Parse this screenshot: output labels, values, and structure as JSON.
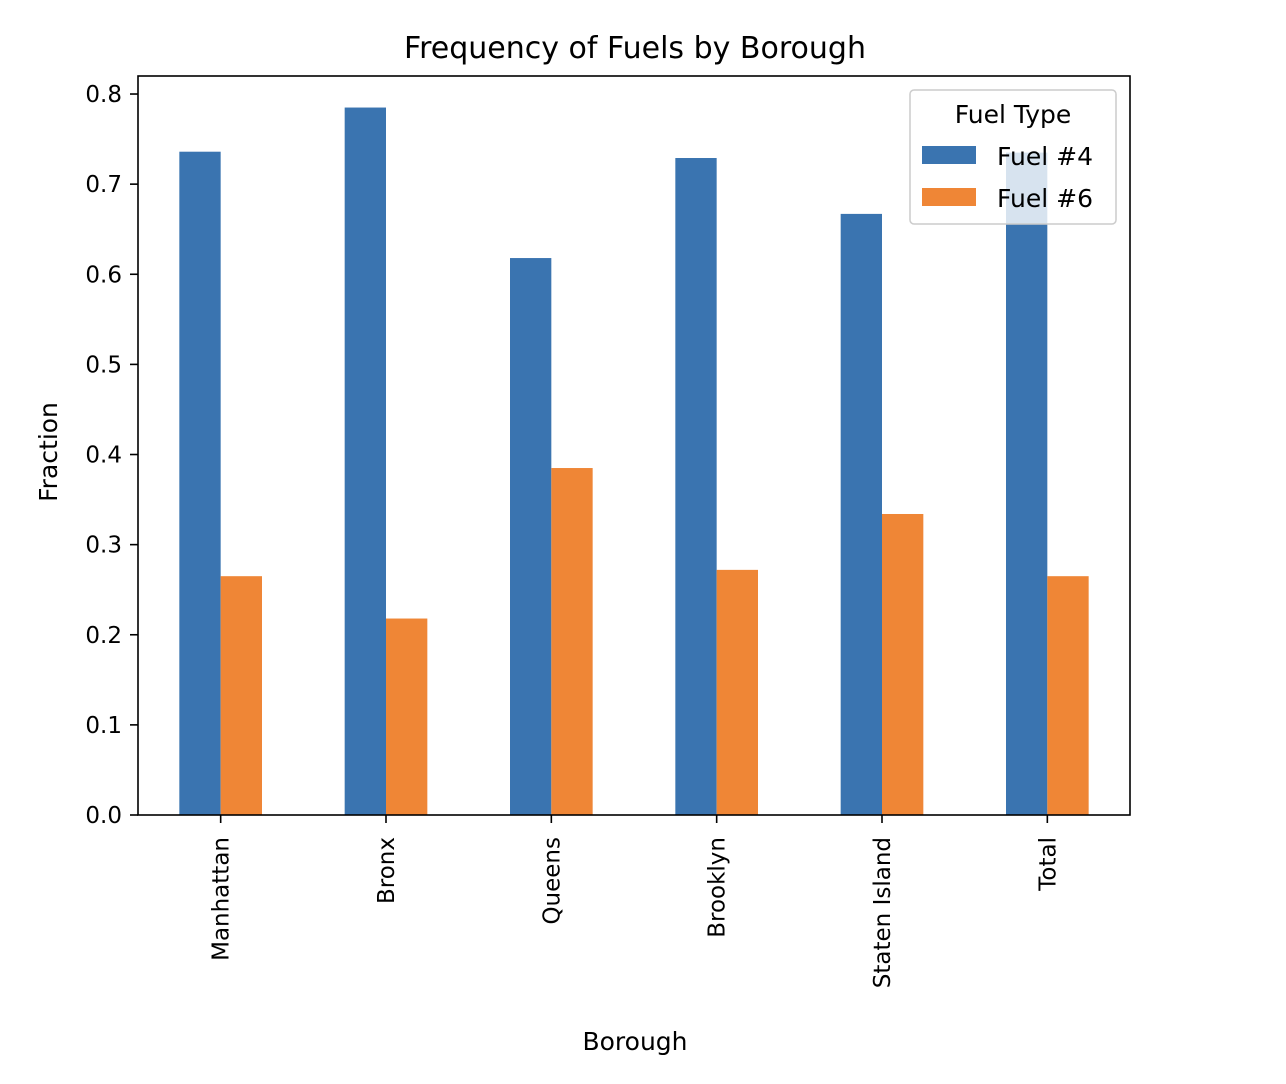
{
  "chart_data": {
    "type": "bar",
    "title": "Frequency of Fuels by Borough",
    "xlabel": "Borough",
    "ylabel": "Fraction",
    "categories": [
      "Manhattan",
      "Bronx",
      "Queens",
      "Brooklyn",
      "Staten Island",
      "Total"
    ],
    "series": [
      {
        "name": "Fuel #4",
        "color": "#3a74b0",
        "values": [
          0.736,
          0.785,
          0.618,
          0.729,
          0.667,
          0.735
        ]
      },
      {
        "name": "Fuel #6",
        "color": "#ef8636",
        "values": [
          0.265,
          0.218,
          0.385,
          0.272,
          0.334,
          0.265
        ]
      }
    ],
    "ylim": [
      0,
      0.82
    ],
    "yticks": [
      "0.0",
      "0.1",
      "0.2",
      "0.3",
      "0.4",
      "0.5",
      "0.6",
      "0.7",
      "0.8"
    ],
    "legend": {
      "title": "Fuel Type",
      "placement": "upper-right"
    },
    "grid": false
  }
}
